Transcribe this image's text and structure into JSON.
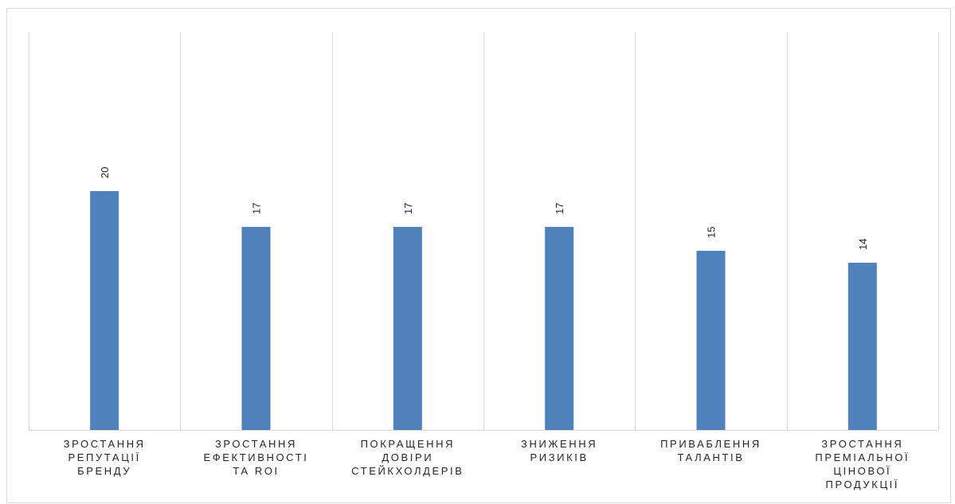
{
  "chart_data": {
    "type": "bar",
    "categories": [
      "ЗРОСТАННЯ\nРЕПУТАЦІЇ\nБРЕНДУ",
      "ЗРОСТАННЯ\nЕФЕКТИВНОСТІ\nТА ROI",
      "ПОКРАЩЕННЯ\nДОВІРИ\nСТЕЙКХОЛДЕРІВ",
      "ЗНИЖЕННЯ\nРИЗИКІВ",
      "ПРИВАБЛЕННЯ\nТАЛАНТІВ",
      "ЗРОСТАННЯ\nПРЕМІАЛЬНОЇ\nЦІНОВОЇ\nПРОДУКЦІЇ"
    ],
    "values": [
      20,
      17,
      17,
      17,
      15,
      14
    ],
    "data_labels": [
      "20",
      "17",
      "17",
      "17",
      "15",
      "14"
    ],
    "ylim": [
      0,
      25
    ],
    "bar_color": "#4f81bd",
    "grid": "vertical category separators",
    "legend": "none"
  }
}
